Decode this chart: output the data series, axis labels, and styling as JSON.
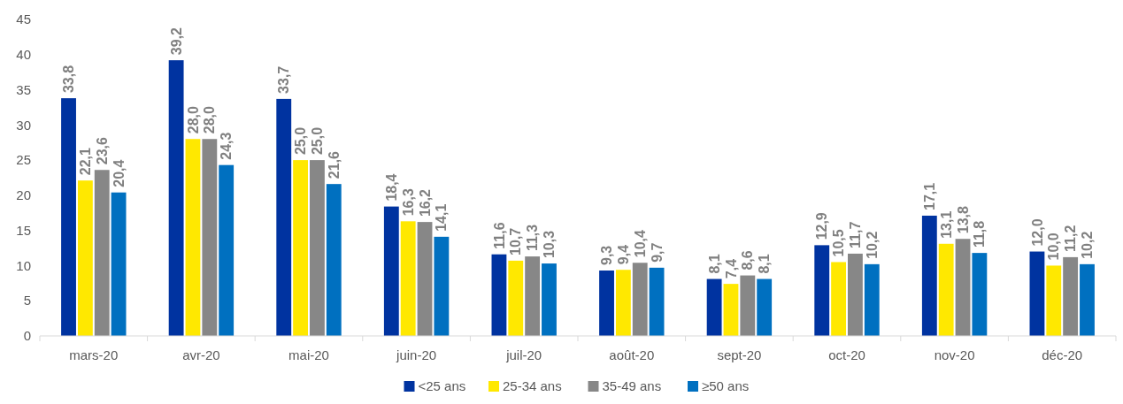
{
  "chart_data": {
    "type": "bar",
    "categories": [
      "mars-20",
      "avr-20",
      "mai-20",
      "juin-20",
      "juil-20",
      "août-20",
      "sept-20",
      "oct-20",
      "nov-20",
      "déc-20"
    ],
    "series": [
      {
        "name": "<25 ans",
        "color": "#0033a0",
        "values": [
          33.8,
          39.2,
          33.7,
          18.4,
          11.6,
          9.3,
          8.1,
          12.9,
          17.1,
          12.0
        ],
        "value_labels": [
          "33,8",
          "39,2",
          "33,7",
          "18,4",
          "11,6",
          "9,3",
          "8,1",
          "12,9",
          "17,1",
          "12,0"
        ]
      },
      {
        "name": "25-34 ans",
        "color": "#ffe800",
        "values": [
          22.1,
          28.0,
          25.0,
          16.3,
          10.7,
          9.4,
          7.4,
          10.5,
          13.1,
          10.0
        ],
        "value_labels": [
          "22,1",
          "28,0",
          "25,0",
          "16,3",
          "10,7",
          "9,4",
          "7,4",
          "10,5",
          "13,1",
          "10,0"
        ]
      },
      {
        "name": "35-49 ans",
        "color": "#878787",
        "values": [
          23.6,
          28.0,
          25.0,
          16.2,
          11.3,
          10.4,
          8.6,
          11.7,
          13.8,
          11.2
        ],
        "value_labels": [
          "23,6",
          "28,0",
          "25,0",
          "16,2",
          "11,3",
          "10,4",
          "8,6",
          "11,7",
          "13,8",
          "11,2"
        ]
      },
      {
        "name": "≥50 ans",
        "color": "#0070c0",
        "values": [
          20.4,
          24.3,
          21.6,
          14.1,
          10.3,
          9.7,
          8.1,
          10.2,
          11.8,
          10.2
        ],
        "value_labels": [
          "20,4",
          "24,3",
          "21,6",
          "14,1",
          "10,3",
          "9,7",
          "8,1",
          "10,2",
          "11,8",
          "10,2"
        ]
      }
    ],
    "ylim": [
      0,
      45
    ],
    "yticks": [
      0,
      5,
      10,
      15,
      20,
      25,
      30,
      35,
      40,
      45
    ],
    "grid": false,
    "legend": "bottom"
  }
}
